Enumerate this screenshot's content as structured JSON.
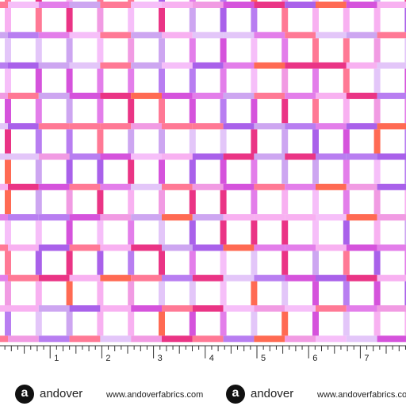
{
  "ruler": {
    "labels": [
      "1",
      "2",
      "3",
      "4",
      "5",
      "6",
      "7"
    ]
  },
  "footer": [
    {
      "logo": "a",
      "brand": "andover",
      "url": "www.andoverfabrics.com"
    },
    {
      "logo": "a",
      "brand": "andover",
      "url": "www.andoverfabrics.com"
    }
  ]
}
